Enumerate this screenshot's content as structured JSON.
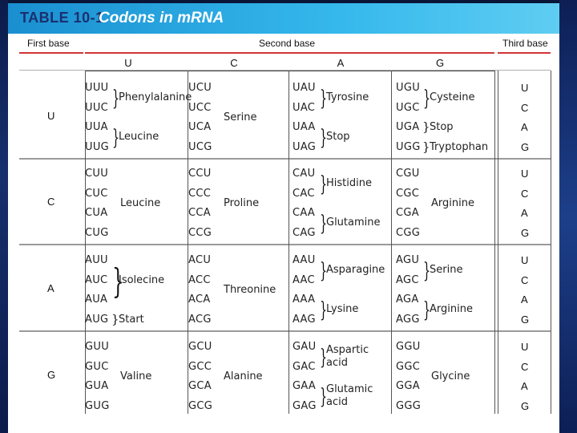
{
  "title": {
    "number": "TABLE 10-1",
    "name": "Codons in mRNA"
  },
  "headers": {
    "first_base": "First base",
    "second_base": "Second base",
    "third_base": "Third base"
  },
  "second_base_letters": [
    "U",
    "C",
    "A",
    "G"
  ],
  "first_base_letters": [
    "U",
    "C",
    "A",
    "G"
  ],
  "third_base_letters": [
    "U",
    "C",
    "A",
    "G"
  ],
  "codons": {
    "U": {
      "U": [
        "UUU",
        "UUC",
        "UUA",
        "UUG"
      ],
      "C": [
        "UCU",
        "UCC",
        "UCA",
        "UCG"
      ],
      "A": [
        "UAU",
        "UAC",
        "UAA",
        "UAG"
      ],
      "G": [
        "UGU",
        "UGC",
        "UGA",
        "UGG"
      ]
    },
    "C": {
      "U": [
        "CUU",
        "CUC",
        "CUA",
        "CUG"
      ],
      "C": [
        "CCU",
        "CCC",
        "CCA",
        "CCG"
      ],
      "A": [
        "CAU",
        "CAC",
        "CAA",
        "CAG"
      ],
      "G": [
        "CGU",
        "CGC",
        "CGA",
        "CGG"
      ]
    },
    "A": {
      "U": [
        "AUU",
        "AUC",
        "AUA",
        "AUG"
      ],
      "C": [
        "ACU",
        "ACC",
        "ACA",
        "ACG"
      ],
      "A": [
        "AAU",
        "AAC",
        "AAA",
        "AAG"
      ],
      "G": [
        "AGU",
        "AGC",
        "AGA",
        "AGG"
      ]
    },
    "G": {
      "U": [
        "GUU",
        "GUC",
        "GUA",
        "GUG"
      ],
      "C": [
        "GCU",
        "GCC",
        "GCA",
        "GCG"
      ],
      "A": [
        "GAU",
        "GAC",
        "GAA",
        "GAG"
      ],
      "G": [
        "GGU",
        "GGC",
        "GGA",
        "GGG"
      ]
    }
  },
  "amino_acids": {
    "U": {
      "U": [
        "Phenylalanine",
        "Leucine"
      ],
      "C": [
        "Serine"
      ],
      "A": [
        "Tyrosine",
        "Stop"
      ],
      "G": [
        "Cysteine",
        "Stop",
        "Tryptophan"
      ]
    },
    "C": {
      "U": [
        "Leucine"
      ],
      "C": [
        "Proline"
      ],
      "A": [
        "Histidine",
        "Glutamine"
      ],
      "G": [
        "Arginine"
      ]
    },
    "A": {
      "U": [
        "Isolecine",
        "Start"
      ],
      "C": [
        "Threonine"
      ],
      "A": [
        "Asparagine",
        "Lysine"
      ],
      "G": [
        "Serine",
        "Arginine"
      ]
    },
    "G": {
      "U": [
        "Valine"
      ],
      "C": [
        "Alanine"
      ],
      "A": [
        "Aspartic acid",
        "Glutamic acid"
      ],
      "G": [
        "Glycine"
      ]
    }
  },
  "colors": {
    "title_bar": "#35b8ec",
    "title_number": "#1b2f6e",
    "header_rule": "#d23434",
    "background": "#0a1638"
  }
}
